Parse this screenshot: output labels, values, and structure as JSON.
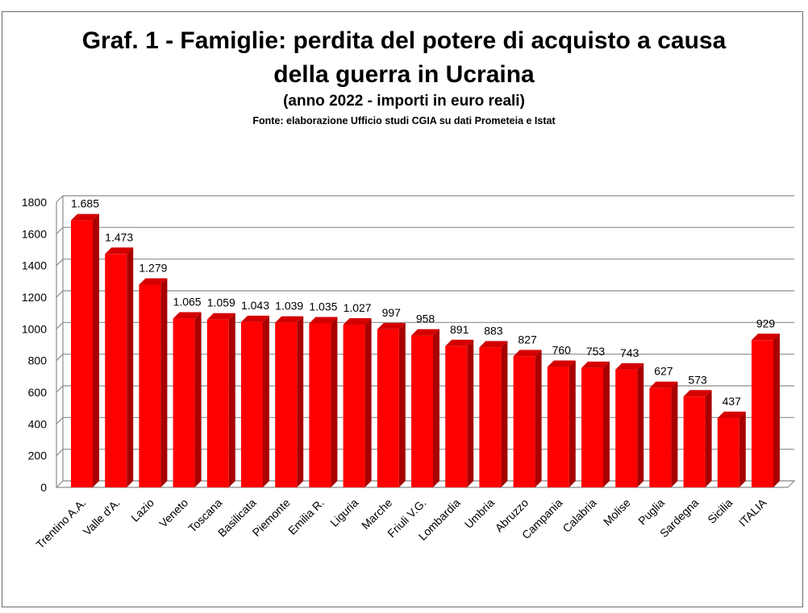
{
  "chart_data": {
    "type": "bar",
    "title_line1": "Graf. 1 - Famiglie: perdita del potere di acquisto a causa",
    "title_line2": "della guerra in Ucraina",
    "subtitle": "(anno 2022 - importi in euro reali)",
    "source": "Fonte: elaborazione Ufficio studi CGIA su dati Prometeia e Istat",
    "categories": [
      "Trentino A.A.",
      "Valle d'A.",
      "Lazio",
      "Veneto",
      "Toscana",
      "Basilicata",
      "Piemonte",
      "Emilia R.",
      "Liguria",
      "Marche",
      "Friuli V.G.",
      "Lombardia",
      "Umbria",
      "Abruzzo",
      "Campania",
      "Calabria",
      "Molise",
      "Puglia",
      "Sardegna",
      "Sicilia",
      "ITALIA"
    ],
    "values": [
      1685,
      1473,
      1279,
      1065,
      1059,
      1043,
      1039,
      1035,
      1027,
      997,
      958,
      891,
      883,
      827,
      760,
      753,
      743,
      627,
      573,
      437,
      929
    ],
    "data_labels": [
      "1.685",
      "1.473",
      "1.279",
      "1.065",
      "1.059",
      "1.043",
      "1.039",
      "1.035",
      "1.027",
      "997",
      "958",
      "891",
      "883",
      "827",
      "760",
      "753",
      "743",
      "627",
      "573",
      "437",
      "929"
    ],
    "yticks": [
      0,
      200,
      400,
      600,
      800,
      1000,
      1200,
      1400,
      1600,
      1800
    ],
    "ylim": [
      0,
      1800
    ],
    "xlabel": "",
    "ylabel": "",
    "grid": true,
    "bar_color": "#ff0000",
    "bar_side_color": "#a80000",
    "bar_top_color": "#d40000"
  }
}
